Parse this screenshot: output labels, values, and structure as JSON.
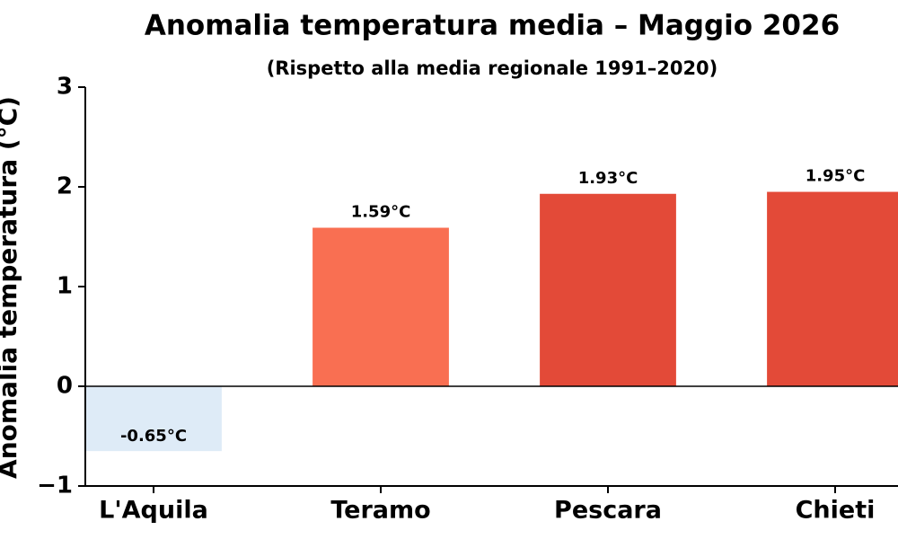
{
  "chart_data": {
    "type": "bar",
    "title": "Anomalia temperatura media – Maggio 2026",
    "subtitle": "(Rispetto alla media regionale 1991–2020)",
    "y_label": "Anomalia temperatura (°C)",
    "categories": [
      "L'Aquila",
      "Teramo",
      "Pescara",
      "Chieti"
    ],
    "values": [
      -0.65,
      1.59,
      1.93,
      1.95
    ],
    "value_labels": [
      "-0.65°C",
      "1.59°C",
      "1.93°C",
      "1.95°C"
    ],
    "colors": [
      "#deebf7",
      "#f96f52",
      "#e34a38",
      "#e34a38"
    ],
    "ylim": [
      -1,
      3
    ],
    "yticks": [
      {
        "value": -1,
        "label": "−1"
      },
      0,
      1,
      2,
      3
    ],
    "zero_line": true
  }
}
